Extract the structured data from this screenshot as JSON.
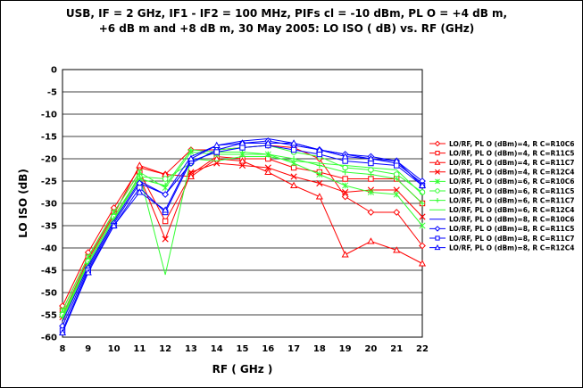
{
  "chart_data": {
    "type": "line",
    "title_line1": "USB, IF = 2 GHz, IF1 - IF2 = 100 MHz, PIFs cl = -10 dBm, PL O = +4 dB m,",
    "title_line2": "+6 dB m and  +8 dB m, 30 May 2005: LO  ISO ( dB)  vs. RF  (GHz)",
    "xlabel": "RF ( GHz )",
    "ylabel": "LO ISO (dB)",
    "xlim": [
      8,
      22
    ],
    "ylim": [
      -60,
      0
    ],
    "x_ticks": [
      8,
      9,
      10,
      11,
      12,
      13,
      14,
      15,
      16,
      17,
      18,
      19,
      20,
      21,
      22
    ],
    "y_ticks": [
      0,
      -5,
      -10,
      -15,
      -20,
      -25,
      -30,
      -35,
      -40,
      -45,
      -50,
      -55,
      -60
    ],
    "grid": "horizontal",
    "legend_position": "right",
    "x": [
      8,
      9,
      10,
      11,
      12,
      13,
      14,
      15,
      16,
      17,
      18,
      19,
      20,
      21,
      22
    ],
    "series": [
      {
        "name": "LO/RF, PL  O (dBm)=4, R C=R10C6",
        "color": "#ff0000",
        "marker": "diamond",
        "values": [
          -53,
          -41,
          -31,
          -22,
          -23.5,
          -18,
          -18,
          -17.5,
          -17,
          -17.5,
          -20,
          -28.5,
          -32,
          -32,
          -39.5
        ]
      },
      {
        "name": "LO/RF, PL  O (dBm)=4, R C=R11C5",
        "color": "#ff0000",
        "marker": "square",
        "values": [
          -54,
          -42,
          -32,
          -23,
          -34,
          -23.5,
          -19.5,
          -20,
          -20,
          -22,
          -23,
          -24.5,
          -24.5,
          -24.5,
          -30
        ]
      },
      {
        "name": "LO/RF, PL  O (dBm)=4, R C=R11C7",
        "color": "#ff0000",
        "marker": "triangle",
        "values": [
          -55,
          -42.5,
          -32.5,
          -21.5,
          -23.5,
          -24,
          -20,
          -20.5,
          -23,
          -26,
          -28.5,
          -41.5,
          -38.5,
          -40.5,
          -43.5
        ]
      },
      {
        "name": "LO/RF, PL  O (dBm)=4, R C=R12C4",
        "color": "#ff0000",
        "marker": "x",
        "values": [
          -55.5,
          -43,
          -33,
          -24,
          -38,
          -23,
          -21,
          -21.5,
          -22,
          -24,
          -25.5,
          -27.5,
          -27,
          -27,
          -33
        ]
      },
      {
        "name": "LO/RF, PL  O (dBm)=6, R C=R10C6",
        "color": "#33ff33",
        "marker": "star",
        "values": [
          -54,
          -42,
          -32,
          -23,
          -26.5,
          -18.5,
          -19,
          -19,
          -19,
          -21,
          -23.5,
          -26,
          -27.5,
          -28,
          -35
        ]
      },
      {
        "name": "LO/RF, PL  O (dBm)=6, R C=R11C5",
        "color": "#33ff33",
        "marker": "circle",
        "values": [
          -55,
          -43,
          -33,
          -24,
          -24.5,
          -21,
          -18,
          -17.5,
          -17,
          -18.5,
          -19.5,
          -22,
          -22.5,
          -23.5,
          -27.5
        ]
      },
      {
        "name": "LO/RF, PL  O (dBm)=6, R C=R11C7",
        "color": "#33ff33",
        "marker": "plus",
        "values": [
          -55.5,
          -43.5,
          -33.5,
          -24.5,
          -26,
          -18,
          -18.5,
          -18.5,
          -19,
          -20,
          -21.5,
          -23,
          -23.5,
          -24.5,
          -30
        ]
      },
      {
        "name": "LO/RF, PL  O (dBm)=6, R C=R12C4",
        "color": "#33ff33",
        "marker": "none",
        "values": [
          -56,
          -44,
          -34,
          -23.5,
          -46,
          -20,
          -20.5,
          -19.5,
          -19.5,
          -20.5,
          -21,
          -21.5,
          -22,
          -22.5,
          -28
        ]
      },
      {
        "name": "LO/RF, PL  O (dBm)=8, R C=R10C6",
        "color": "#0000ff",
        "marker": "none",
        "values": [
          -56.5,
          -44,
          -34,
          -25,
          -28,
          -19.5,
          -17,
          -16,
          -15.5,
          -16.5,
          -18,
          -19,
          -20,
          -21,
          -25.5
        ]
      },
      {
        "name": "LO/RF, PL  O (dBm)=8, R C=R11C5",
        "color": "#0000ff",
        "marker": "diamond",
        "values": [
          -57.5,
          -44.5,
          -34.5,
          -25.5,
          -28,
          -21,
          -18,
          -16.5,
          -16,
          -17,
          -18,
          -19,
          -19.5,
          -20.5,
          -25
        ]
      },
      {
        "name": "LO/RF, PL  O (dBm)=8, R C=R11C7",
        "color": "#0000ff",
        "marker": "square",
        "values": [
          -58.5,
          -45,
          -35,
          -26.5,
          -32,
          -20.5,
          -18.5,
          -17.5,
          -17,
          -18,
          -19,
          -20.5,
          -21,
          -21.5,
          -26
        ]
      },
      {
        "name": "LO/RF, PL  O (dBm)=8, R C=R12C4",
        "color": "#0000ff",
        "marker": "triangle",
        "values": [
          -59,
          -45.5,
          -35,
          -27.5,
          -31.5,
          -20,
          -17,
          -16.5,
          -16.5,
          -16.5,
          -18,
          -19.5,
          -20,
          -20.5,
          -26
        ]
      }
    ]
  }
}
